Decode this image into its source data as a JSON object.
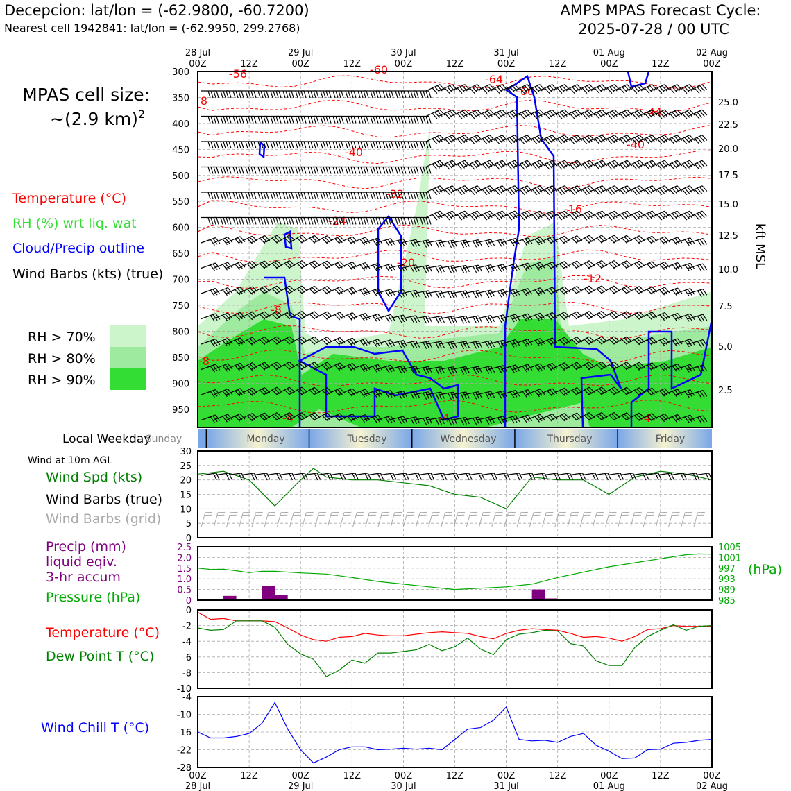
{
  "header": {
    "location": "Decepcion: lat/lon = (-62.9800, -60.7200)",
    "nearest": "Nearest cell 1942841: lat/lon = (-62.9950, 299.2768)",
    "cycle_line1": "AMPS MPAS Forecast Cycle:",
    "cycle_line2": "2025-07-28 / 00 UTC"
  },
  "cell_size": {
    "label": "MPAS cell size:",
    "value": "~(2.9 km)",
    "exp": "2"
  },
  "legend": {
    "temperature": "Temperature (°C)",
    "rh": "RH (%) wrt liq. wat",
    "cloud": "Cloud/Precip outline",
    "wind": "Wind Barbs (kts) (true)",
    "rh70": "RH > 70%",
    "rh80": "RH > 80%",
    "rh90": "RH > 90%"
  },
  "colors": {
    "temp": "#ff0000",
    "rh": "#33dd33",
    "cloud": "#0000ff",
    "dew": "#008000",
    "precip": "#800080",
    "pressure": "#00aa00",
    "windspd": "#008000",
    "grid": "#aaaaaa"
  },
  "time_axis": {
    "top_dates": [
      "28 Jul",
      "29 Jul",
      "30 Jul",
      "31 Jul",
      "01 Aug",
      "02 Aug"
    ],
    "hours": [
      "00Z",
      "12Z",
      "00Z",
      "12Z",
      "00Z",
      "12Z",
      "00Z",
      "12Z",
      "00Z",
      "12Z",
      "00Z"
    ]
  },
  "weekday": {
    "label": "Local Weekday",
    "days": [
      "Sunday",
      "Monday",
      "Tuesday",
      "Wednesday",
      "Thursday",
      "Friday"
    ]
  },
  "right_axis": {
    "label": "kft MSL",
    "ticks": [
      "25.0",
      "22.5",
      "20.0",
      "17.5",
      "15.0",
      "12.5",
      "10.0",
      "7.5",
      "5.0",
      "2.5"
    ]
  },
  "panel_labels": {
    "wind10m": "Wind at 10m AGL",
    "windspd": "Wind Spd (kts)",
    "barbs_true": "Wind Barbs (true)",
    "barbs_grid": "Wind Barbs (grid)",
    "precip1": "Precip (mm)",
    "precip2": "liquid eqiv.",
    "precip3": "3-hr accum",
    "pressure": "Pressure (hPa)",
    "pressure_unit": "(hPa)",
    "temperature": "Temperature (°C)",
    "dewpoint": "Dew Point T (°C)",
    "windchill": "Wind Chill T (°C)"
  },
  "chart_data": [
    {
      "type": "heatmap",
      "xlabel": "",
      "ylabel": "",
      "y_ticks": [
        300,
        350,
        400,
        450,
        500,
        550,
        600,
        650,
        700,
        750,
        800,
        850,
        900,
        950
      ],
      "ylim": [
        985,
        300
      ],
      "xlim_hours": [
        0,
        120
      ],
      "temperature_labels": [
        "-56",
        "-60",
        "-64",
        "-60",
        "-44",
        "-40",
        "-40",
        "-32",
        "-24",
        "-20",
        "-16",
        "-12",
        "-8",
        "-8",
        "-4",
        "-4",
        "-4"
      ],
      "grid": true
    },
    {
      "type": "line",
      "title": "",
      "ylim": [
        0,
        30
      ],
      "y_ticks": [
        0,
        5,
        10,
        15,
        20,
        25,
        30
      ],
      "series": [
        {
          "name": "Wind Spd (kts)",
          "x": [
            0,
            6,
            12,
            18,
            24,
            27,
            30,
            36,
            42,
            48,
            54,
            60,
            66,
            72,
            78,
            84,
            90,
            96,
            102,
            108,
            114,
            120
          ],
          "values": [
            22,
            23,
            20,
            11,
            20,
            24,
            21,
            20,
            20,
            19,
            18,
            15,
            14,
            10,
            21,
            20,
            20,
            15,
            21,
            23,
            22,
            20
          ]
        }
      ]
    },
    {
      "type": "bar",
      "ylim": [
        0,
        2.5
      ],
      "y_ticks": [
        "0",
        "0.5",
        "1.0",
        "1.5",
        "2.0",
        "2.5"
      ],
      "series": [
        {
          "name": "Precip (mm)",
          "x": [
            6,
            15,
            18,
            78,
            81
          ],
          "values": [
            0.2,
            0.65,
            0.25,
            0.5,
            0.08
          ]
        }
      ]
    },
    {
      "type": "line",
      "ylim": [
        985,
        1005
      ],
      "y_ticks": [
        "985",
        "989",
        "993",
        "997",
        "1001",
        "1005"
      ],
      "series": [
        {
          "name": "Pressure (hPa)",
          "x": [
            0,
            3,
            6,
            9,
            12,
            15,
            18,
            24,
            30,
            36,
            42,
            48,
            54,
            60,
            66,
            72,
            78,
            84,
            90,
            96,
            102,
            108,
            114,
            117,
            120
          ],
          "values": [
            997,
            996.5,
            996.6,
            996,
            995.3,
            995.8,
            995.8,
            995.2,
            994.8,
            993.5,
            992,
            991,
            990,
            989,
            989.5,
            990,
            991,
            993.5,
            995.5,
            997.5,
            999,
            1000.5,
            1002,
            1002.3,
            1002.2
          ]
        }
      ]
    },
    {
      "type": "line",
      "ylim": [
        -10,
        0
      ],
      "y_ticks": [
        0,
        -2,
        -4,
        -6,
        -8,
        -10
      ],
      "series": [
        {
          "name": "Temperature (°C)",
          "x": [
            0,
            3,
            6,
            9,
            12,
            15,
            18,
            21,
            24,
            27,
            30,
            33,
            36,
            39,
            42,
            45,
            48,
            51,
            54,
            57,
            60,
            63,
            66,
            69,
            72,
            75,
            78,
            81,
            84,
            87,
            90,
            93,
            96,
            99,
            102,
            105,
            108,
            111,
            114,
            117,
            120
          ],
          "values": [
            -0.3,
            -1.2,
            -1.1,
            -1.4,
            -1.4,
            -1.4,
            -1.5,
            -2.3,
            -3.2,
            -3.8,
            -4.0,
            -3.5,
            -3.4,
            -3.0,
            -3.2,
            -3.3,
            -3.3,
            -3.1,
            -2.9,
            -2.8,
            -2.9,
            -3.0,
            -3.4,
            -3.7,
            -3.0,
            -2.6,
            -2.4,
            -2.5,
            -2.6,
            -3.0,
            -3.5,
            -3.4,
            -3.6,
            -4.0,
            -3.4,
            -2.5,
            -2.4,
            -2.0,
            -2.1,
            -2.1,
            -2.1
          ]
        },
        {
          "name": "Dew Point T (°C)",
          "x": [
            0,
            3,
            6,
            9,
            12,
            15,
            18,
            21,
            24,
            27,
            30,
            33,
            36,
            39,
            42,
            45,
            48,
            51,
            54,
            57,
            60,
            63,
            66,
            69,
            72,
            75,
            78,
            81,
            84,
            87,
            90,
            93,
            96,
            99,
            102,
            105,
            108,
            111,
            114,
            117,
            120
          ],
          "values": [
            -2.3,
            -2.6,
            -2.5,
            -1.4,
            -1.4,
            -1.4,
            -2.2,
            -4.4,
            -5.6,
            -6.3,
            -8.5,
            -7.7,
            -6.4,
            -6.8,
            -5.5,
            -5.5,
            -5.3,
            -5.1,
            -4.4,
            -5.2,
            -4.7,
            -3.6,
            -5.0,
            -5.7,
            -3.8,
            -3.1,
            -2.9,
            -2.6,
            -2.7,
            -4.3,
            -4.6,
            -6.5,
            -7.1,
            -7.1,
            -4.8,
            -3.4,
            -2.6,
            -1.9,
            -2.6,
            -2.1,
            -2.0
          ]
        }
      ]
    },
    {
      "type": "line",
      "ylim": [
        -28,
        -4
      ],
      "y_ticks": [
        -4,
        -10,
        -16,
        -22,
        -28
      ],
      "series": [
        {
          "name": "Wind Chill T (°C)",
          "x": [
            0,
            3,
            6,
            9,
            12,
            15,
            18,
            21,
            24,
            27,
            30,
            33,
            36,
            39,
            42,
            45,
            48,
            51,
            54,
            57,
            60,
            63,
            66,
            69,
            72,
            75,
            78,
            81,
            84,
            87,
            90,
            93,
            96,
            99,
            102,
            105,
            108,
            111,
            114,
            117,
            120
          ],
          "values": [
            -16,
            -18,
            -18,
            -17.5,
            -16.5,
            -13,
            -6,
            -15,
            -22,
            -26.5,
            -24.5,
            -22,
            -21,
            -21,
            -22,
            -21.8,
            -21.5,
            -21.8,
            -21.5,
            -22,
            -18.5,
            -15,
            -14.5,
            -12,
            -7.5,
            -18.5,
            -19,
            -18.8,
            -19.5,
            -17.5,
            -16.5,
            -20.5,
            -22.5,
            -25,
            -24.8,
            -22,
            -21.8,
            -19.8,
            -19.5,
            -18.8,
            -18.5
          ]
        }
      ]
    }
  ]
}
